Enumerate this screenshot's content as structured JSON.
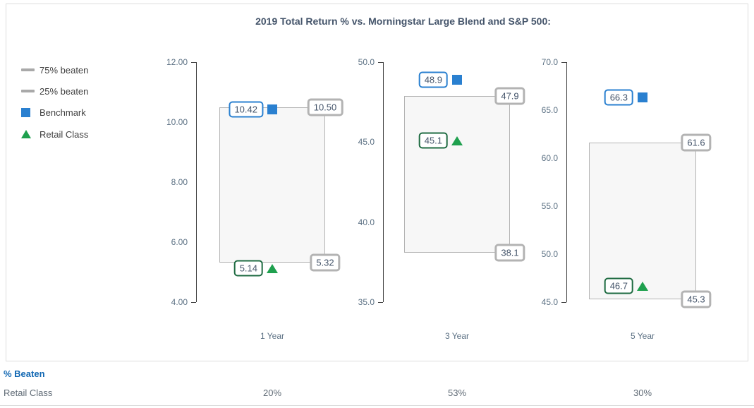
{
  "title": "2019 Total Return % vs. Morningstar Large Blend and S&P 500:",
  "legend": {
    "items": [
      {
        "swatch": "gray-line",
        "label": "75% beaten"
      },
      {
        "swatch": "gray-line",
        "label": "25% beaten"
      },
      {
        "swatch": "blue-square",
        "label": "Benchmark"
      },
      {
        "swatch": "green-triangle",
        "label": "Retail Class"
      }
    ]
  },
  "chart_data": {
    "type": "bar",
    "subtype": "floating quartile-range boxes with benchmark (square) and retail class (triangle) markers",
    "title": "2019 Total Return % vs. Morningstar Large Blend and S&P 500:",
    "categories": [
      "1 Year",
      "3 Year",
      "5 Year"
    ],
    "grid": "off",
    "legend_position": "left",
    "panels": [
      {
        "category": "1 Year",
        "axis_min": 4.0,
        "axis_max": 12.0,
        "ticks": [
          {
            "value": 12.0,
            "label": "12.00"
          },
          {
            "value": 10.0,
            "label": "10.00"
          },
          {
            "value": 8.0,
            "label": "8.00"
          },
          {
            "value": 6.0,
            "label": "6.00"
          },
          {
            "value": 4.0,
            "label": "4.00"
          }
        ],
        "beaten_75": {
          "value": 10.5,
          "label": "10.50"
        },
        "beaten_25": {
          "value": 5.32,
          "label": "5.32"
        },
        "benchmark": {
          "value": 10.42,
          "label": "10.42"
        },
        "retail": {
          "value": 5.14,
          "label": "5.14"
        },
        "percent_beaten": "20%"
      },
      {
        "category": "3 Year",
        "axis_min": 35.0,
        "axis_max": 50.0,
        "ticks": [
          {
            "value": 50.0,
            "label": "50.0"
          },
          {
            "value": 45.0,
            "label": "45.0"
          },
          {
            "value": 40.0,
            "label": "40.0"
          },
          {
            "value": 35.0,
            "label": "35.0"
          }
        ],
        "beaten_75": {
          "value": 47.9,
          "label": "47.9"
        },
        "beaten_25": {
          "value": 38.1,
          "label": "38.1"
        },
        "benchmark": {
          "value": 48.9,
          "label": "48.9"
        },
        "retail": {
          "value": 45.1,
          "label": "45.1"
        },
        "percent_beaten": "53%"
      },
      {
        "category": "5 Year",
        "axis_min": 45.0,
        "axis_max": 70.0,
        "ticks": [
          {
            "value": 70.0,
            "label": "70.0"
          },
          {
            "value": 65.0,
            "label": "65.0"
          },
          {
            "value": 60.0,
            "label": "60.0"
          },
          {
            "value": 55.0,
            "label": "55.0"
          },
          {
            "value": 50.0,
            "label": "50.0"
          },
          {
            "value": 45.0,
            "label": "45.0"
          }
        ],
        "beaten_75": {
          "value": 61.6,
          "label": "61.6"
        },
        "beaten_25": {
          "value": 45.3,
          "label": "45.3"
        },
        "benchmark": {
          "value": 66.3,
          "label": "66.3"
        },
        "retail": {
          "value": 46.7,
          "label": "46.7"
        },
        "percent_beaten": "30%"
      }
    ]
  },
  "footer": {
    "section_title": "% Beaten",
    "row_label": "Retail Class",
    "values": [
      "20%",
      "53%",
      "30%"
    ]
  },
  "colors": {
    "benchmark_blue": "#2a80d0",
    "retail_green": "#1fa04e",
    "retail_dark_green": "#1e6b41",
    "range_gray": "#b3b3b3",
    "box_fill": "#f7f7f7",
    "axis_color": "#3f3f3f",
    "tick_text": "#5b7083",
    "label_text": "#44546a",
    "title_text": "#44546a",
    "beaten_blue": "#1268b3",
    "footer_gray": "#5f6a75"
  }
}
